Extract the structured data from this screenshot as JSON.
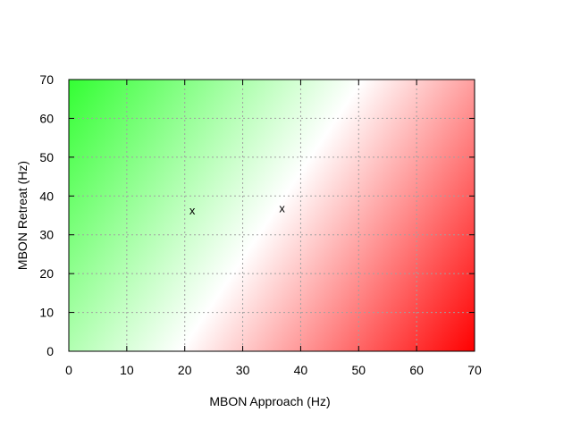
{
  "chart_data": {
    "type": "heatmap",
    "xlabel": "MBON Approach (Hz)",
    "ylabel": "MBON Retreat (Hz)",
    "xlim": [
      0,
      70
    ],
    "ylim": [
      0,
      70
    ],
    "xticks": [
      "0",
      "10",
      "20",
      "30",
      "40",
      "50",
      "60",
      "70"
    ],
    "yticks": [
      "0",
      "10",
      "20",
      "30",
      "40",
      "50",
      "60",
      "70"
    ],
    "grid": true,
    "colormap": {
      "low_color": "#ff0000",
      "mid_color": "#ffffff",
      "high_color": "#00ff00",
      "value": "retreat - approach"
    },
    "points": [
      {
        "x": 21.3,
        "y": 36.2,
        "label": "x"
      },
      {
        "x": 36.8,
        "y": 36.7,
        "label": "x"
      }
    ]
  }
}
